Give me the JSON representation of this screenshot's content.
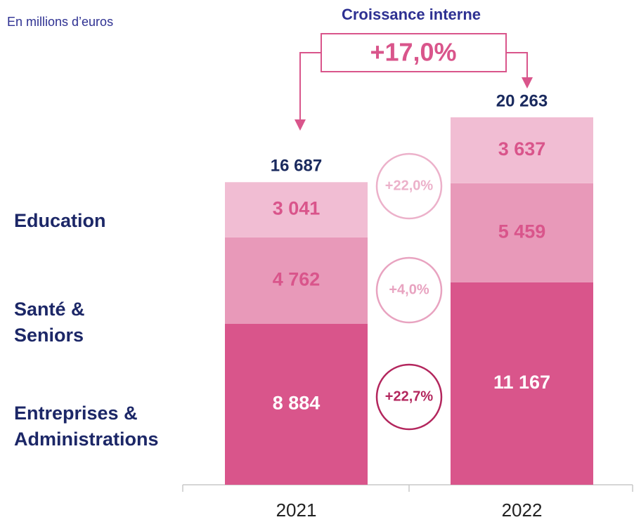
{
  "chart_data": {
    "type": "bar",
    "stacked": true,
    "subtitle": "En millions d’euros",
    "growth_title": "Croissance interne",
    "growth_total": "+17,0%",
    "categories": [
      "2021",
      "2022"
    ],
    "totals": [
      16687,
      20263
    ],
    "total_labels": [
      "16 687",
      "20 263"
    ],
    "series": [
      {
        "name": "Entreprises & Administrations",
        "color": "#d9558b",
        "label_color": "#ffffff",
        "growth": "+22,7%",
        "growth_color": "#b3265d",
        "values": [
          8884,
          11167
        ],
        "value_labels": [
          "8 884",
          "11 167"
        ]
      },
      {
        "name": "Santé & Seniors",
        "color": "#e899b9",
        "label_color": "#d9558b",
        "growth": "+4,0%",
        "growth_color": "#e8a3c0",
        "values": [
          4762,
          5459
        ],
        "value_labels": [
          "4 762",
          "5 459"
        ]
      },
      {
        "name": "Education",
        "color": "#f1bdd3",
        "label_color": "#d9558b",
        "growth": "+22,0%",
        "growth_color": "#ecb1ca",
        "values": [
          3041,
          3637
        ],
        "value_labels": [
          "3 041",
          "3 637"
        ]
      }
    ]
  }
}
